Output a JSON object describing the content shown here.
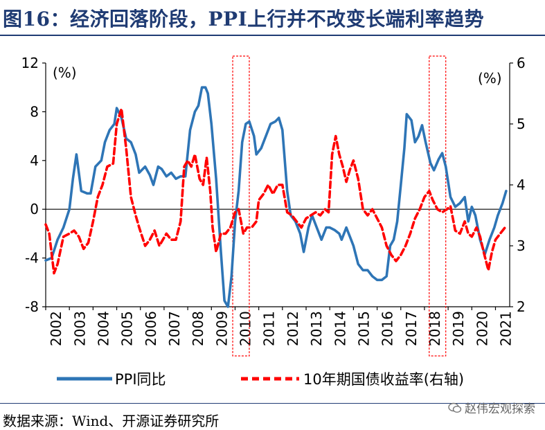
{
  "title": "图16：经济回落阶段，PPI上行并不改变长端利率趋势",
  "chart_data": {
    "type": "line",
    "left_axis": {
      "unit": "(%)",
      "ylim": [
        -8,
        12
      ],
      "ticks": [
        -8,
        -4,
        0,
        4,
        8,
        12
      ]
    },
    "right_axis": {
      "unit": "(%)",
      "ylim": [
        2,
        6
      ],
      "ticks": [
        2,
        3,
        4,
        5,
        6
      ]
    },
    "xlim": [
      2002,
      2021.6
    ],
    "x_tick_labels": [
      "2002",
      "2003",
      "2004",
      "2005",
      "2006",
      "2007",
      "2008",
      "2009",
      "2010",
      "2011",
      "2012",
      "2013",
      "2014",
      "2015",
      "2016",
      "2017",
      "2018",
      "2019",
      "2020",
      "2021"
    ],
    "highlight_periods": [
      [
        2009.9,
        2010.6
      ],
      [
        2018.2,
        2018.9
      ]
    ],
    "series": [
      {
        "name": "PPI同比",
        "axis": "left",
        "color": "#2e75b6",
        "style": "solid",
        "x": [
          2002.0,
          2002.25,
          2002.5,
          2002.75,
          2003.0,
          2003.15,
          2003.3,
          2003.5,
          2003.75,
          2003.9,
          2004.1,
          2004.35,
          2004.5,
          2004.7,
          2004.9,
          2005.0,
          2005.2,
          2005.4,
          2005.6,
          2005.8,
          2005.95,
          2006.2,
          2006.4,
          2006.55,
          2006.75,
          2006.9,
          2007.1,
          2007.3,
          2007.5,
          2007.7,
          2007.9,
          2008.1,
          2008.3,
          2008.45,
          2008.6,
          2008.75,
          2008.85,
          2009.0,
          2009.2,
          2009.4,
          2009.55,
          2009.7,
          2009.85,
          2010.0,
          2010.15,
          2010.3,
          2010.45,
          2010.6,
          2010.8,
          2010.9,
          2011.1,
          2011.3,
          2011.5,
          2011.7,
          2011.85,
          2012.0,
          2012.2,
          2012.35,
          2012.55,
          2012.75,
          2012.9,
          2013.1,
          2013.25,
          2013.45,
          2013.65,
          2013.85,
          2014.0,
          2014.2,
          2014.4,
          2014.5,
          2014.7,
          2014.9,
          2015.0,
          2015.2,
          2015.4,
          2015.6,
          2015.8,
          2016.0,
          2016.2,
          2016.4,
          2016.55,
          2016.7,
          2016.85,
          2017.0,
          2017.15,
          2017.25,
          2017.45,
          2017.6,
          2017.75,
          2017.9,
          2018.05,
          2018.25,
          2018.4,
          2018.6,
          2018.75,
          2018.9,
          2019.1,
          2019.3,
          2019.5,
          2019.7,
          2019.85,
          2020.0,
          2020.15,
          2020.35,
          2020.55,
          2020.75,
          2020.95,
          2021.1,
          2021.3,
          2021.45
        ],
        "values": [
          -4.2,
          -4.0,
          -2.5,
          -1.5,
          0.0,
          2.5,
          4.5,
          1.5,
          1.3,
          1.3,
          3.5,
          4.0,
          5.5,
          6.5,
          7.0,
          8.3,
          7.5,
          5.8,
          5.5,
          4.5,
          3.0,
          3.5,
          2.8,
          2.0,
          3.5,
          3.3,
          2.7,
          3.0,
          2.5,
          2.7,
          2.7,
          6.5,
          8.0,
          8.5,
          10.0,
          10.0,
          9.5,
          7.0,
          2.5,
          -3.5,
          -7.5,
          -8.0,
          -5.5,
          -1.0,
          1.5,
          5.5,
          7.0,
          7.2,
          6.0,
          4.5,
          5.0,
          6.0,
          7.0,
          7.2,
          7.5,
          6.5,
          1.5,
          -0.5,
          -1.0,
          -2.0,
          -3.5,
          -1.5,
          -0.5,
          -1.5,
          -2.5,
          -1.5,
          -1.5,
          -1.7,
          -2.0,
          -2.5,
          -1.5,
          -2.5,
          -3.0,
          -4.5,
          -5.0,
          -5.0,
          -5.5,
          -5.8,
          -5.8,
          -5.5,
          -3.0,
          -2.5,
          -1.0,
          2.0,
          5.0,
          7.8,
          7.3,
          5.5,
          6.0,
          6.9,
          5.5,
          3.8,
          3.2,
          4.1,
          4.6,
          3.5,
          1.0,
          0.2,
          0.5,
          1.0,
          -1.0,
          0.2,
          -0.5,
          -2.5,
          -3.7,
          -2.5,
          -1.5,
          -0.5,
          0.5,
          1.5
        ],
        "label": "PPI同比"
      },
      {
        "name": "10年期国债收益率(右轴)",
        "axis": "right",
        "color": "#ff0000",
        "style": "dashed",
        "x": [
          2002.0,
          2002.15,
          2002.35,
          2002.5,
          2002.75,
          2003.0,
          2003.2,
          2003.4,
          2003.6,
          2003.8,
          2004.0,
          2004.2,
          2004.4,
          2004.6,
          2004.85,
          2005.0,
          2005.2,
          2005.4,
          2005.6,
          2005.8,
          2005.95,
          2006.2,
          2006.4,
          2006.6,
          2006.8,
          2006.95,
          2007.1,
          2007.3,
          2007.5,
          2007.7,
          2007.85,
          2008.0,
          2008.15,
          2008.3,
          2008.5,
          2008.65,
          2008.8,
          2008.95,
          2009.05,
          2009.2,
          2009.4,
          2009.6,
          2009.8,
          2010.0,
          2010.15,
          2010.35,
          2010.5,
          2010.7,
          2010.9,
          2011.0,
          2011.2,
          2011.4,
          2011.6,
          2011.8,
          2012.0,
          2012.2,
          2012.4,
          2012.6,
          2012.8,
          2013.0,
          2013.2,
          2013.4,
          2013.6,
          2013.8,
          2013.95,
          2014.1,
          2014.25,
          2014.4,
          2014.55,
          2014.7,
          2014.85,
          2015.0,
          2015.2,
          2015.4,
          2015.6,
          2015.8,
          2016.0,
          2016.2,
          2016.4,
          2016.6,
          2016.8,
          2017.0,
          2017.2,
          2017.4,
          2017.6,
          2017.8,
          2018.0,
          2018.2,
          2018.35,
          2018.55,
          2018.75,
          2018.95,
          2019.1,
          2019.3,
          2019.5,
          2019.7,
          2019.85,
          2020.0,
          2020.2,
          2020.35,
          2020.5,
          2020.7,
          2020.85,
          2021.0,
          2021.2,
          2021.4
        ],
        "values": [
          3.35,
          3.2,
          2.55,
          2.7,
          3.15,
          3.2,
          3.25,
          3.15,
          2.95,
          3.05,
          3.4,
          3.8,
          4.0,
          4.3,
          4.35,
          5.0,
          5.25,
          4.6,
          3.8,
          3.5,
          3.3,
          3.0,
          3.1,
          3.25,
          3.0,
          3.1,
          3.2,
          3.1,
          3.1,
          3.4,
          4.3,
          4.4,
          4.3,
          4.5,
          4.1,
          4.0,
          4.45,
          3.9,
          3.3,
          2.9,
          3.2,
          3.2,
          3.3,
          3.55,
          3.6,
          3.2,
          3.3,
          3.3,
          3.4,
          3.75,
          3.85,
          4.0,
          3.85,
          4.0,
          4.0,
          3.55,
          3.5,
          3.4,
          3.3,
          3.45,
          3.5,
          3.55,
          3.5,
          3.6,
          3.55,
          4.5,
          4.8,
          4.5,
          4.3,
          4.05,
          4.25,
          4.4,
          4.1,
          3.6,
          3.5,
          3.6,
          3.45,
          3.3,
          3.0,
          2.85,
          2.75,
          2.85,
          3.0,
          3.2,
          3.45,
          3.6,
          3.8,
          3.9,
          3.75,
          3.6,
          3.55,
          3.6,
          3.65,
          3.25,
          3.2,
          3.4,
          3.2,
          3.15,
          3.3,
          3.15,
          2.9,
          2.6,
          2.9,
          3.1,
          3.2,
          3.3
        ],
        "label": "10年期国债收益率(右轴)"
      }
    ]
  },
  "legend": [
    {
      "label": "PPI同比",
      "color": "#2e75b6",
      "style": "solid"
    },
    {
      "label": "10年期国债收益率(右轴)",
      "color": "#ff0000",
      "style": "dashed"
    }
  ],
  "source": "数据来源：Wind、开源证券研究所",
  "watermark": "赵伟宏观探索"
}
